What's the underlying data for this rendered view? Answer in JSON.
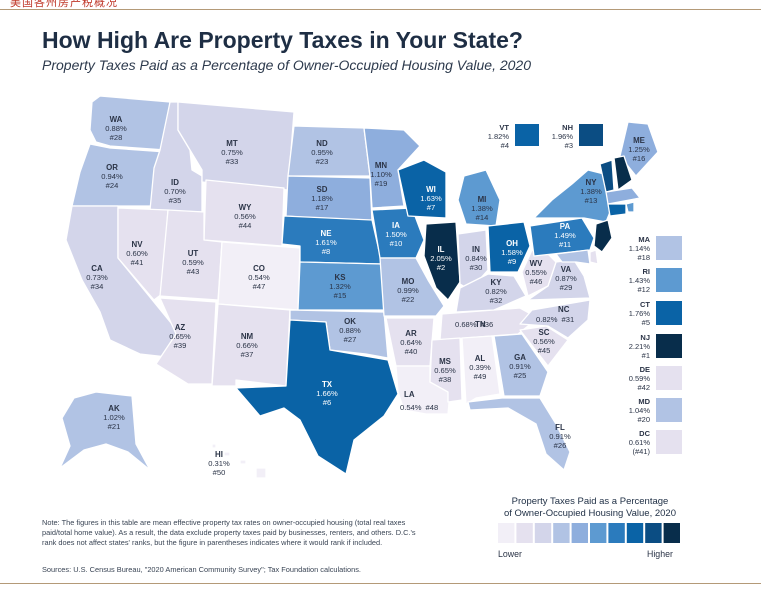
{
  "header": {
    "clipped_caption": "美国各州房产税概况",
    "title": "How High Are Property Taxes in Your State?",
    "subtitle": "Property Taxes Paid as a Percentage of Owner-Occupied Housing Value, 2020"
  },
  "colors": {
    "scale": [
      "#f2eff7",
      "#e5e1ef",
      "#d3d5ea",
      "#b1c3e4",
      "#8eaedd",
      "#5d9ad1",
      "#2b7bbd",
      "#0a63a6",
      "#0b4d83",
      "#082d4b"
    ]
  },
  "states": {
    "WA": {
      "abbr": "WA",
      "rate": "0.88%",
      "rank": "#28",
      "level": 3
    },
    "OR": {
      "abbr": "OR",
      "rate": "0.94%",
      "rank": "#24",
      "level": 3
    },
    "CA": {
      "abbr": "CA",
      "rate": "0.73%",
      "rank": "#34",
      "level": 2
    },
    "ID": {
      "abbr": "ID",
      "rate": "0.70%",
      "rank": "#35",
      "level": 2
    },
    "NV": {
      "abbr": "NV",
      "rate": "0.60%",
      "rank": "#41",
      "level": 1
    },
    "MT": {
      "abbr": "MT",
      "rate": "0.75%",
      "rank": "#33",
      "level": 2
    },
    "WY": {
      "abbr": "WY",
      "rate": "0.56%",
      "rank": "#44",
      "level": 1
    },
    "UT": {
      "abbr": "UT",
      "rate": "0.59%",
      "rank": "#43",
      "level": 1
    },
    "AZ": {
      "abbr": "AZ",
      "rate": "0.65%",
      "rank": "#39",
      "level": 1
    },
    "CO": {
      "abbr": "CO",
      "rate": "0.54%",
      "rank": "#47",
      "level": 0
    },
    "NM": {
      "abbr": "NM",
      "rate": "0.66%",
      "rank": "#37",
      "level": 1
    },
    "ND": {
      "abbr": "ND",
      "rate": "0.95%",
      "rank": "#23",
      "level": 3
    },
    "SD": {
      "abbr": "SD",
      "rate": "1.18%",
      "rank": "#17",
      "level": 4
    },
    "NE": {
      "abbr": "NE",
      "rate": "1.61%",
      "rank": "#8",
      "level": 6
    },
    "KS": {
      "abbr": "KS",
      "rate": "1.32%",
      "rank": "#15",
      "level": 5
    },
    "OK": {
      "abbr": "OK",
      "rate": "0.88%",
      "rank": "#27",
      "level": 3
    },
    "TX": {
      "abbr": "TX",
      "rate": "1.66%",
      "rank": "#6",
      "level": 7
    },
    "MN": {
      "abbr": "MN",
      "rate": "1.10%",
      "rank": "#19",
      "level": 4
    },
    "IA": {
      "abbr": "IA",
      "rate": "1.50%",
      "rank": "#10",
      "level": 6
    },
    "MO": {
      "abbr": "MO",
      "rate": "0.99%",
      "rank": "#22",
      "level": 3
    },
    "AR": {
      "abbr": "AR",
      "rate": "0.64%",
      "rank": "#40",
      "level": 1
    },
    "LA": {
      "abbr": "LA",
      "rate": "0.54%",
      "rank": "#48",
      "level": 0
    },
    "WI": {
      "abbr": "WI",
      "rate": "1.63%",
      "rank": "#7",
      "level": 7
    },
    "IL": {
      "abbr": "IL",
      "rate": "2.05%",
      "rank": "#2",
      "level": 9
    },
    "MI": {
      "abbr": "MI",
      "rate": "1.38%",
      "rank": "#14",
      "level": 5
    },
    "IN": {
      "abbr": "IN",
      "rate": "0.84%",
      "rank": "#30",
      "level": 2
    },
    "OH": {
      "abbr": "OH",
      "rate": "1.58%",
      "rank": "#9",
      "level": 7
    },
    "KY": {
      "abbr": "KY",
      "rate": "0.82%",
      "rank": "#32",
      "level": 2
    },
    "TN": {
      "abbr": "TN",
      "rate": "0.68%",
      "rank": "#36",
      "level": 1
    },
    "MS": {
      "abbr": "MS",
      "rate": "0.65%",
      "rank": "#38",
      "level": 1
    },
    "AL": {
      "abbr": "AL",
      "rate": "0.39%",
      "rank": "#49",
      "level": 0
    },
    "GA": {
      "abbr": "GA",
      "rate": "0.91%",
      "rank": "#25",
      "level": 3
    },
    "FL": {
      "abbr": "FL",
      "rate": "0.91%",
      "rank": "#26",
      "level": 3
    },
    "SC": {
      "abbr": "SC",
      "rate": "0.56%",
      "rank": "#45",
      "level": 1
    },
    "NC": {
      "abbr": "NC",
      "rate": "0.82%",
      "rank": "#31",
      "level": 2
    },
    "VA": {
      "abbr": "VA",
      "rate": "0.87%",
      "rank": "#29",
      "level": 2
    },
    "WV": {
      "abbr": "WV",
      "rate": "0.55%",
      "rank": "#46",
      "level": 1
    },
    "PA": {
      "abbr": "PA",
      "rate": "1.49%",
      "rank": "#11",
      "level": 6
    },
    "NY": {
      "abbr": "NY",
      "rate": "1.38%",
      "rank": "#13",
      "level": 5
    },
    "ME": {
      "abbr": "ME",
      "rate": "1.25%",
      "rank": "#16",
      "level": 4
    },
    "VT": {
      "abbr": "VT",
      "rate": "1.82%",
      "rank": "#4",
      "level": 8
    },
    "NH": {
      "abbr": "NH",
      "rate": "1.96%",
      "rank": "#3",
      "level": 9
    },
    "MA": {
      "abbr": "MA",
      "rate": "1.14%",
      "rank": "#18",
      "level": 4
    },
    "RI": {
      "abbr": "RI",
      "rate": "1.43%",
      "rank": "#12",
      "level": 5
    },
    "CT": {
      "abbr": "CT",
      "rate": "1.76%",
      "rank": "#5",
      "level": 7
    },
    "NJ": {
      "abbr": "NJ",
      "rate": "2.21%",
      "rank": "#1",
      "level": 9
    },
    "DE": {
      "abbr": "DE",
      "rate": "0.59%",
      "rank": "#42",
      "level": 1
    },
    "MD": {
      "abbr": "MD",
      "rate": "1.04%",
      "rank": "#20",
      "level": 3
    },
    "DC": {
      "abbr": "DC",
      "rate": "0.61%",
      "rank": "(#41)",
      "level": 1
    },
    "AK": {
      "abbr": "AK",
      "rate": "1.02%",
      "rank": "#21",
      "level": 3
    },
    "HI": {
      "abbr": "HI",
      "rate": "0.31%",
      "rank": "#50",
      "level": 0
    }
  },
  "legend": {
    "title_line1": "Property Taxes Paid as a Percentage",
    "title_line2": "of Owner-Occupied Housing Value, 2020",
    "lower": "Lower",
    "higher": "Higher"
  },
  "footer": {
    "note": "Note: The figures in this table are mean effective property tax rates on owner-occupied housing (total real taxes paid/total home value). As a result, the data exclude property taxes paid by businesses, renters, and others. D.C.'s rank does not affect states' ranks, but the figure in parentheses indicates where it would rank if included.",
    "source": "Sources: U.S. Census Bureau, \"2020  American Community Survey\"; Tax Foundation calculations."
  }
}
